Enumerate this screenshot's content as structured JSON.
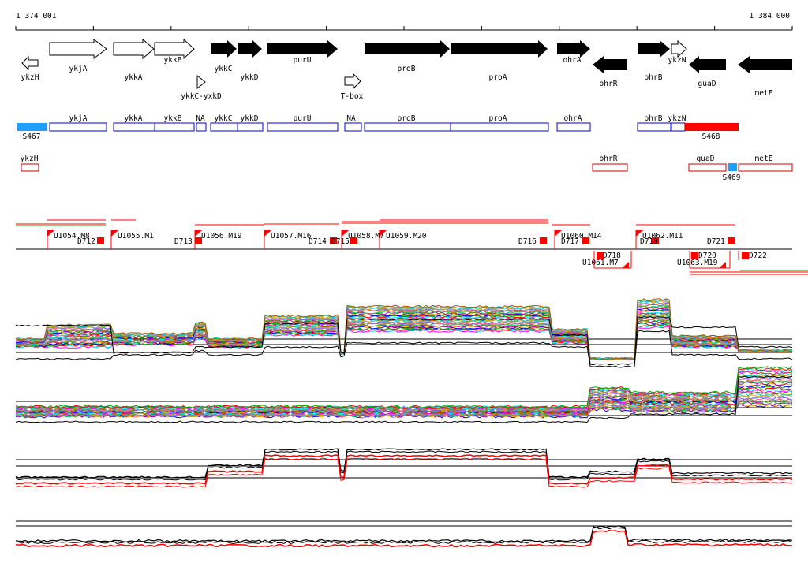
{
  "coords": {
    "start": "1 374 001",
    "end": "1 384 000"
  },
  "colors": {
    "black": "#000000",
    "red": "#ff0000",
    "blue": "#0000cc",
    "cyan": "#1e9fff",
    "green": "#00aa00",
    "darkred": "#cc0000",
    "rainbow": [
      "#ff00ff",
      "#00ffff",
      "#ff0000",
      "#00aa00",
      "#0000ff",
      "#ffaa00",
      "#aa00aa",
      "#00cc66",
      "#888800",
      "#ff6688",
      "#6666ff",
      "#999999",
      "#ccaa00",
      "#00cccc",
      "#aa5500"
    ]
  },
  "genes": [
    {
      "id": "ykzH",
      "dir": "L",
      "fill": "open"
    },
    {
      "id": "ykjA",
      "dir": "R",
      "fill": "open"
    },
    {
      "id": "ykkA",
      "dir": "R",
      "fill": "open"
    },
    {
      "id": "ykkB",
      "dir": "R",
      "fill": "open"
    },
    {
      "id": "ykkC",
      "dir": "R",
      "fill": "solid"
    },
    {
      "id": "ykkD",
      "dir": "R",
      "fill": "solid"
    },
    {
      "id": "purU",
      "dir": "R",
      "fill": "solid"
    },
    {
      "id": "proB",
      "dir": "R",
      "fill": "solid"
    },
    {
      "id": "proA",
      "dir": "R",
      "fill": "solid"
    },
    {
      "id": "ohrA",
      "dir": "R",
      "fill": "solid"
    },
    {
      "id": "ohrR",
      "dir": "L",
      "fill": "solid"
    },
    {
      "id": "ohrB",
      "dir": "R",
      "fill": "solid"
    },
    {
      "id": "ykzN",
      "dir": "R",
      "fill": "open"
    },
    {
      "id": "guaD",
      "dir": "L",
      "fill": "solid"
    },
    {
      "id": "metE",
      "dir": "L",
      "fill": "solid"
    }
  ],
  "elements": [
    {
      "id": "ykkC-yxkD",
      "kind": "riboswitch"
    },
    {
      "id": "T-box",
      "kind": "riboswitch"
    }
  ],
  "fwd_segments": [
    "ykjA",
    "ykkA",
    "ykkB",
    "NA",
    "ykkC",
    "ykkD",
    "purU",
    "NA",
    "proB",
    "proA",
    "ohrA",
    "ohrB",
    "ykzN"
  ],
  "rev_segments": [
    "ykzH",
    "ohrR",
    "guaD",
    "metE"
  ],
  "s_labels": [
    "S467",
    "S468",
    "S469"
  ],
  "upshifts": [
    "U1054.M8",
    "U1055.M1",
    "U1056.M19",
    "U1057.M16",
    "U1058.M7",
    "U1059.M20",
    "U1060.M14",
    "U1061.M7",
    "U1062.M11",
    "U1063.M19"
  ],
  "downshifts": [
    "D712",
    "D713",
    "D714",
    "D715",
    "D716",
    "D717",
    "D718",
    "D719",
    "D720",
    "D721",
    "D722"
  ]
}
